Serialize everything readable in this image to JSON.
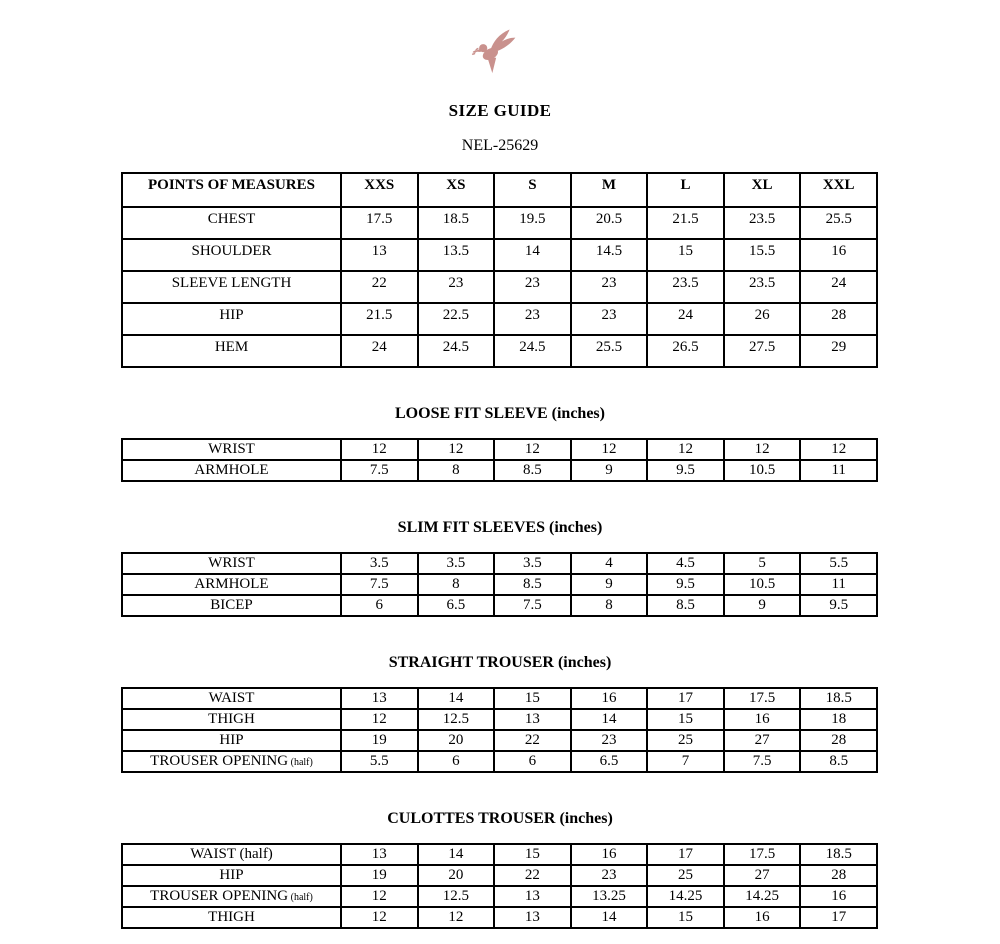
{
  "page": {
    "title": "SIZE GUIDE",
    "code": "NEL-25629",
    "logo": "dove-logo",
    "logo_color": "#c9918d"
  },
  "sizes": [
    "XXS",
    "XS",
    "S",
    "M",
    "L",
    "XL",
    "XXL"
  ],
  "points_table": {
    "header": "POINTS OF MEASURES",
    "rows": [
      {
        "label": "CHEST",
        "values": [
          "17.5",
          "18.5",
          "19.5",
          "20.5",
          "21.5",
          "23.5",
          "25.5"
        ]
      },
      {
        "label": "SHOULDER",
        "values": [
          "13",
          "13.5",
          "14",
          "14.5",
          "15",
          "15.5",
          "16"
        ]
      },
      {
        "label": "SLEEVE LENGTH",
        "values": [
          "22",
          "23",
          "23",
          "23",
          "23.5",
          "23.5",
          "24"
        ]
      },
      {
        "label": "HIP",
        "values": [
          "21.5",
          "22.5",
          "23",
          "23",
          "24",
          "26",
          "28"
        ]
      },
      {
        "label": "HEM",
        "values": [
          "24",
          "24.5",
          "24.5",
          "25.5",
          "26.5",
          "27.5",
          "29"
        ]
      }
    ]
  },
  "sections": [
    {
      "title": "LOOSE FIT SLEEVE (inches)",
      "rows": [
        {
          "label": "WRIST",
          "values": [
            "12",
            "12",
            "12",
            "12",
            "12",
            "12",
            "12"
          ]
        },
        {
          "label": "ARMHOLE",
          "values": [
            "7.5",
            "8",
            "8.5",
            "9",
            "9.5",
            "10.5",
            "11"
          ]
        }
      ]
    },
    {
      "title": "SLIM FIT SLEEVES (inches)",
      "rows": [
        {
          "label": "WRIST",
          "values": [
            "3.5",
            "3.5",
            "3.5",
            "4",
            "4.5",
            "5",
            "5.5"
          ]
        },
        {
          "label": "ARMHOLE",
          "values": [
            "7.5",
            "8",
            "8.5",
            "9",
            "9.5",
            "10.5",
            "11"
          ]
        },
        {
          "label": "BICEP",
          "values": [
            "6",
            "6.5",
            "7.5",
            "8",
            "8.5",
            "9",
            "9.5"
          ]
        }
      ]
    },
    {
      "title": "STRAIGHT TROUSER (inches)",
      "rows": [
        {
          "label": "WAIST",
          "values": [
            "13",
            "14",
            "15",
            "16",
            "17",
            "17.5",
            "18.5"
          ]
        },
        {
          "label": "THIGH",
          "values": [
            "12",
            "12.5",
            "13",
            "14",
            "15",
            "16",
            "18"
          ]
        },
        {
          "label": "HIP",
          "values": [
            "19",
            "20",
            "22",
            "23",
            "25",
            "27",
            "28"
          ]
        },
        {
          "label": "TROUSER OPENING",
          "label_suffix": "(half)",
          "values": [
            "5.5",
            "6",
            "6",
            "6.5",
            "7",
            "7.5",
            "8.5"
          ]
        }
      ]
    },
    {
      "title": "CULOTTES TROUSER (inches)",
      "rows": [
        {
          "label": "WAIST (half)",
          "values": [
            "13",
            "14",
            "15",
            "16",
            "17",
            "17.5",
            "18.5"
          ]
        },
        {
          "label": "HIP",
          "values": [
            "19",
            "20",
            "22",
            "23",
            "25",
            "27",
            "28"
          ]
        },
        {
          "label": "TROUSER OPENING",
          "label_suffix": "(half)",
          "values": [
            "12",
            "12.5",
            "13",
            "13.25",
            "14.25",
            "14.25",
            "16"
          ]
        },
        {
          "label": "THIGH",
          "values": [
            "12",
            "12",
            "13",
            "14",
            "15",
            "16",
            "17"
          ]
        }
      ]
    }
  ]
}
